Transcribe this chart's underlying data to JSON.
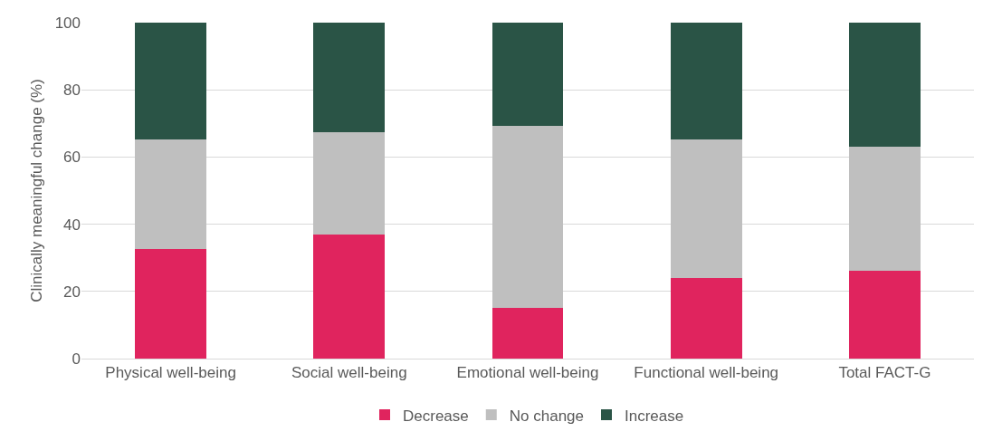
{
  "chart_data": {
    "type": "bar",
    "stacked": true,
    "ylabel": "Clinically meaningful change (%)",
    "categories": [
      "Physical well-being",
      "Social well-being",
      "Emotional well-being",
      "Functional well-being",
      "Total FACT-G"
    ],
    "series": [
      {
        "name": "Decrease",
        "color": "#e0245e",
        "values": [
          32.5,
          36.8,
          15.1,
          23.9,
          26.1
        ]
      },
      {
        "name": "No change",
        "color": "#bfbfbf",
        "values": [
          32.8,
          30.7,
          54.3,
          41.4,
          37.1
        ]
      },
      {
        "name": "Increase",
        "color": "#2a5446",
        "values": [
          34.7,
          32.5,
          30.6,
          34.7,
          36.8
        ]
      }
    ],
    "ylim": [
      0,
      100
    ],
    "yticks": [
      0,
      20,
      40,
      60,
      80,
      100
    ],
    "grid": "y",
    "legend": "bottom"
  }
}
